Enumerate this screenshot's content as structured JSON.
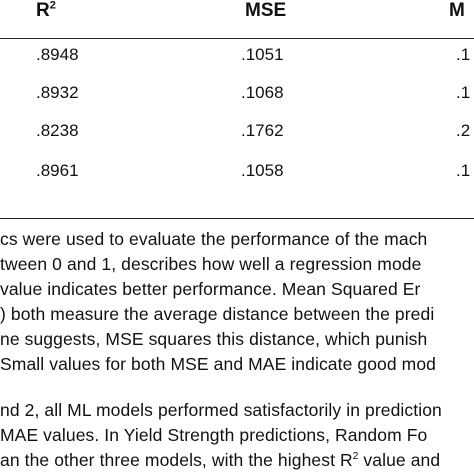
{
  "table": {
    "headers": [
      "R",
      "MSE",
      "M"
    ],
    "r2_sup": "2",
    "rows": [
      [
        ".8948",
        ".1051",
        ".1"
      ],
      [
        ".8932",
        ".1068",
        ".1"
      ],
      [
        ".8238",
        ".1762",
        ".2"
      ],
      [
        ".8961",
        ".1058",
        ".1"
      ]
    ]
  },
  "paragraph1": {
    "lines": [
      "cs were used to evaluate the performance of the mach",
      "tween 0 and 1, describes how well a regression mode",
      " value indicates better performance. Mean Squared Er",
      ") both measure the average distance between the predi",
      "ne suggests, MSE squares this distance, which punish",
      "Small values for both MSE and MAE indicate good mod"
    ]
  },
  "paragraph2": {
    "lines": [
      "nd 2, all ML models performed satisfactorily in prediction",
      "MAE values. In Yield Strength predictions, Random Fo",
      "an the other three models, with the highest R"
    ],
    "last_sup": "2",
    "last_tail": " value and"
  }
}
